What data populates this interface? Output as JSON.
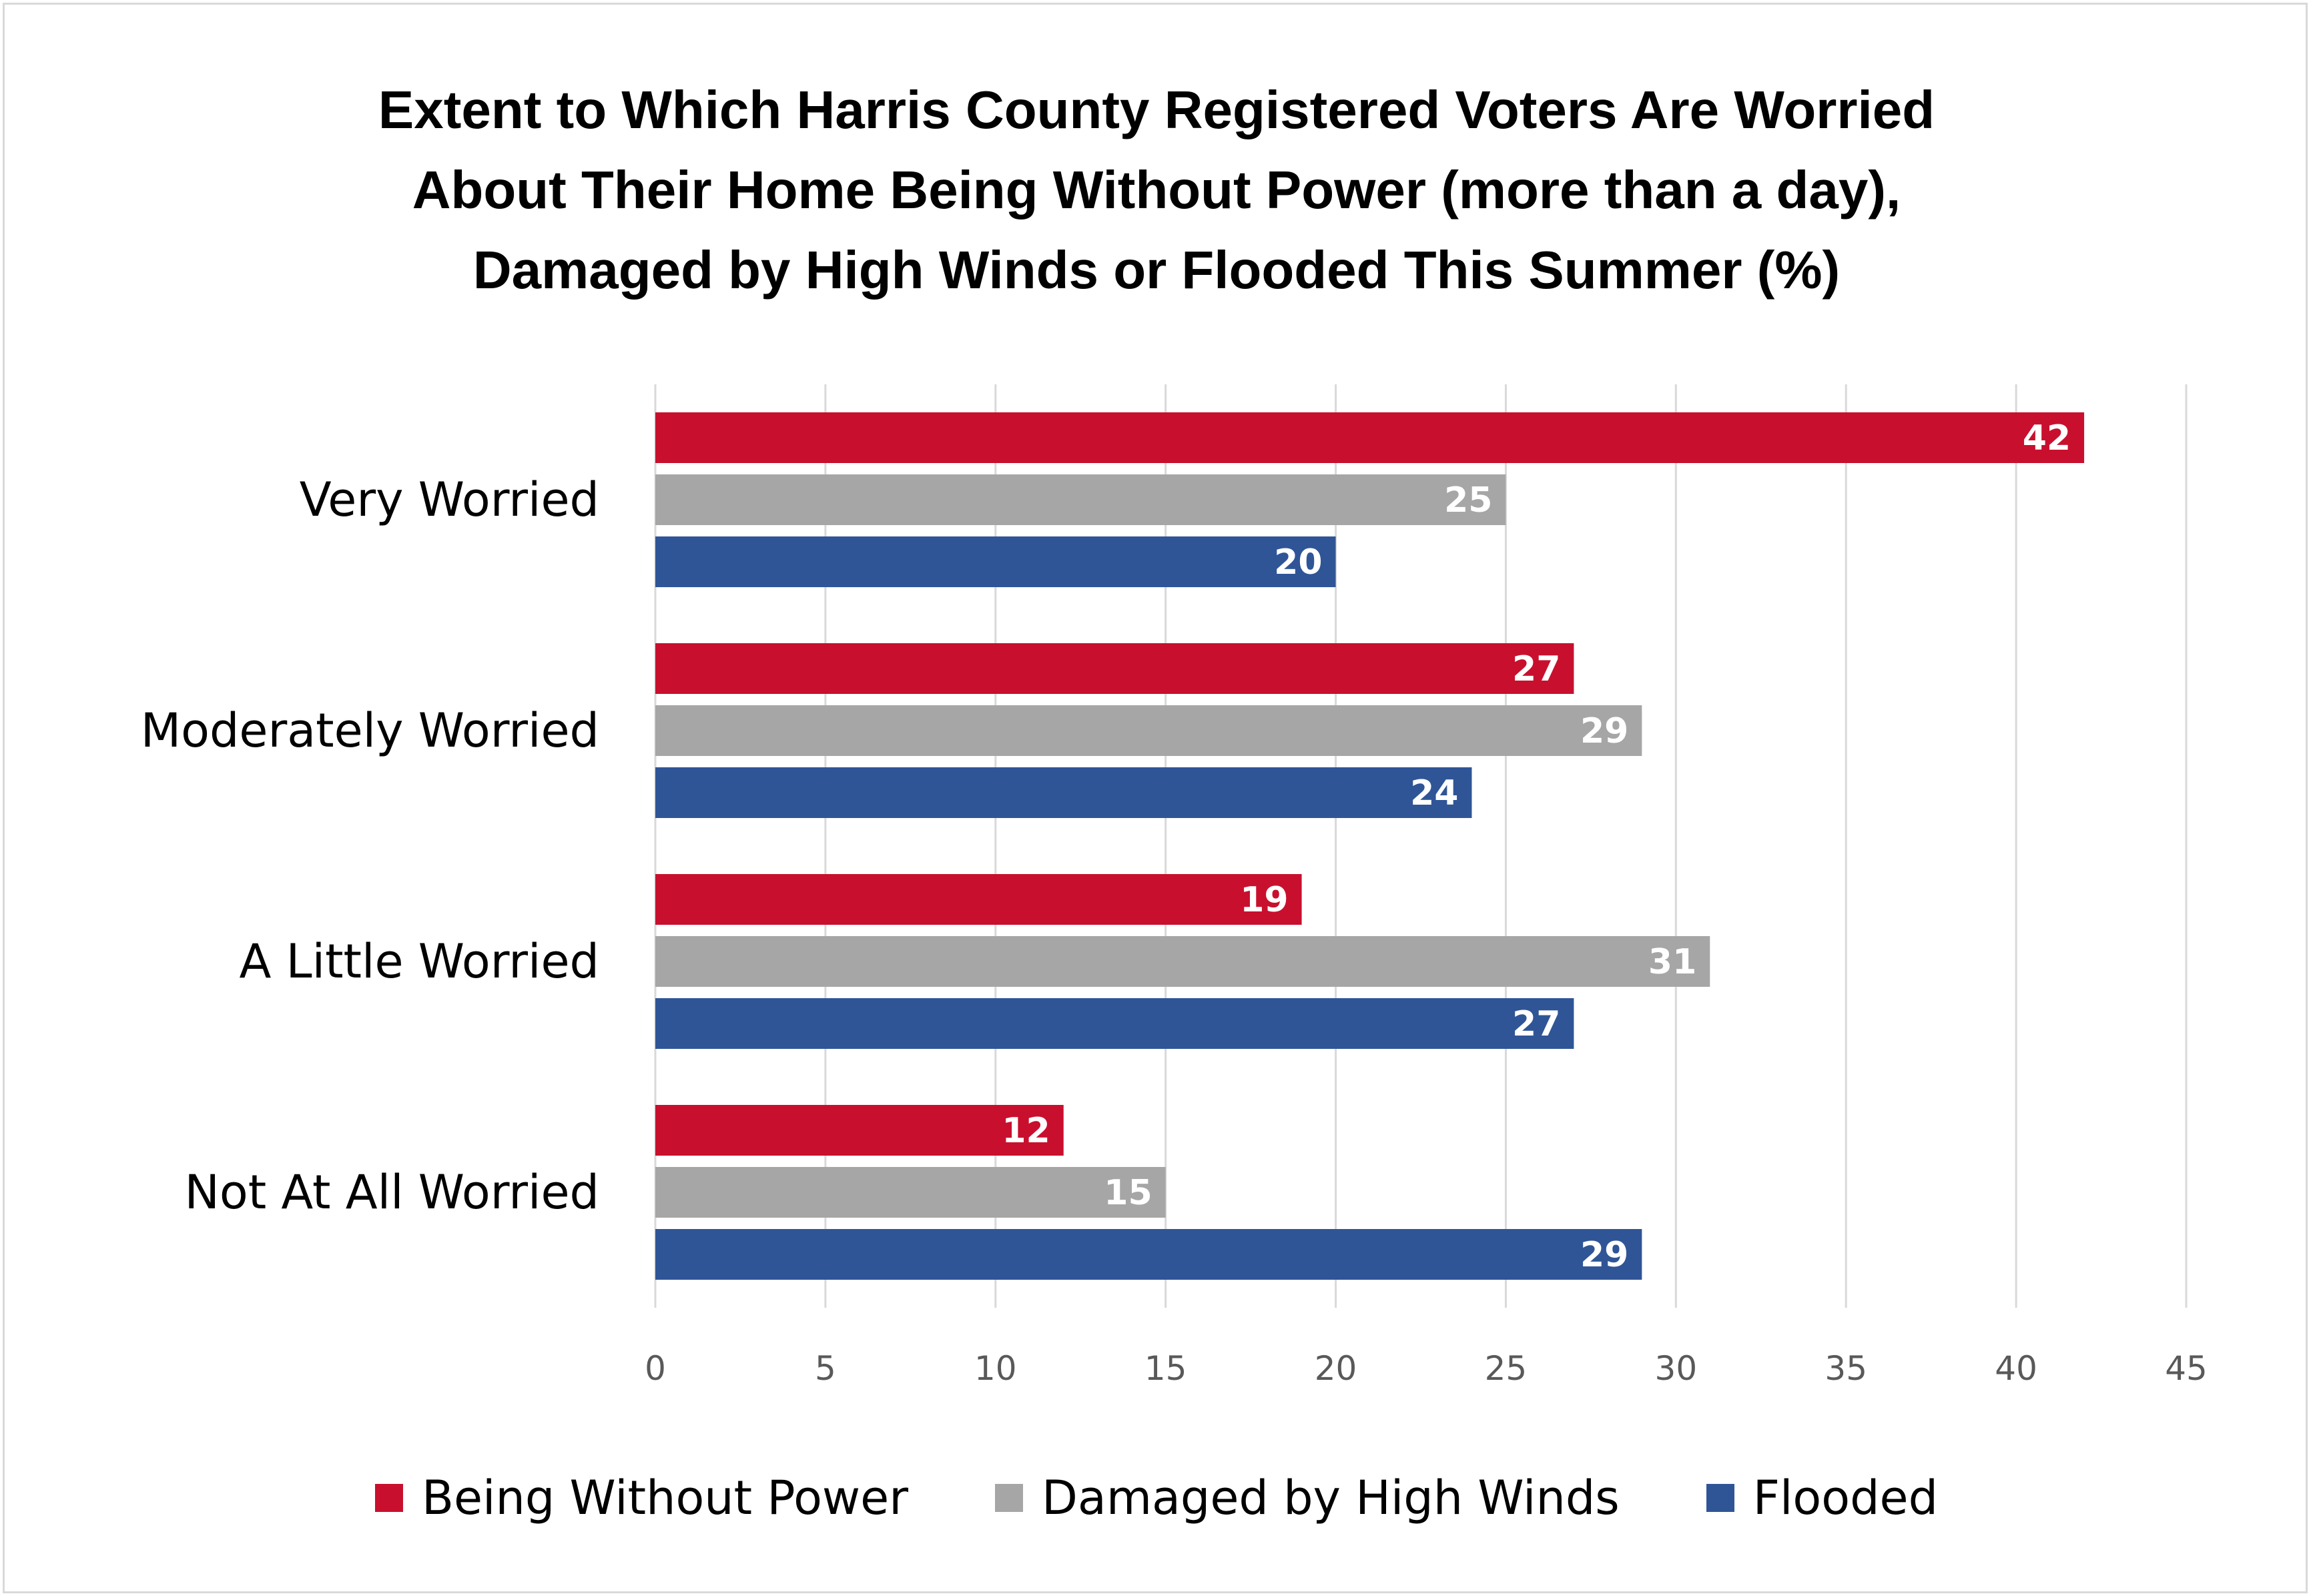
{
  "chart_data": {
    "type": "bar",
    "orientation": "horizontal",
    "title_lines": [
      "Extent to Which Harris County Registered Voters Are Worried",
      "About Their Home Being Without Power (more than a day),",
      "Damaged by High Winds or Flooded This Summer (%)"
    ],
    "categories": [
      "Very Worried",
      "Moderately Worried",
      "A Little Worried",
      "Not At All Worried"
    ],
    "series": [
      {
        "name": "Being Without Power",
        "color": "#c8102e",
        "values": [
          42,
          27,
          19,
          12
        ]
      },
      {
        "name": "Damaged by High Winds",
        "color": "#a6a6a6",
        "values": [
          25,
          29,
          31,
          15
        ]
      },
      {
        "name": "Flooded",
        "color": "#2f5597",
        "values": [
          20,
          24,
          27,
          29
        ]
      }
    ],
    "xlim": [
      0,
      45
    ],
    "xticks": [
      0,
      5,
      10,
      15,
      20,
      25,
      30,
      35,
      40,
      45
    ],
    "grid": "vertical",
    "legend_position": "bottom",
    "data_labels": true
  }
}
